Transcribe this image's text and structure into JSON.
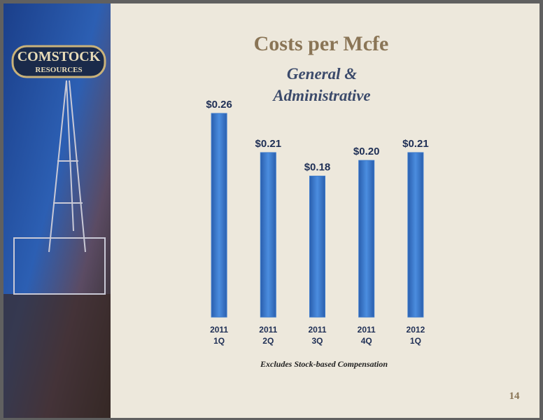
{
  "logo": [
    "COMSTOCK",
    "RESOURCES"
  ],
  "page_number": "14",
  "chart_data": {
    "type": "bar",
    "title": "Costs per Mcfe",
    "subtitle": [
      "General &",
      "Administrative"
    ],
    "categories": [
      [
        "2011",
        "1Q"
      ],
      [
        "2011",
        "2Q"
      ],
      [
        "2011",
        "3Q"
      ],
      [
        "2011",
        "4Q"
      ],
      [
        "2012",
        "1Q"
      ]
    ],
    "values": [
      0.26,
      0.21,
      0.18,
      0.2,
      0.21
    ],
    "value_labels": [
      "$0.26",
      "$0.21",
      "$0.18",
      "$0.20",
      "$0.21"
    ],
    "color": "#3d7bcc",
    "note": "Excludes Stock-based Compensation"
  }
}
